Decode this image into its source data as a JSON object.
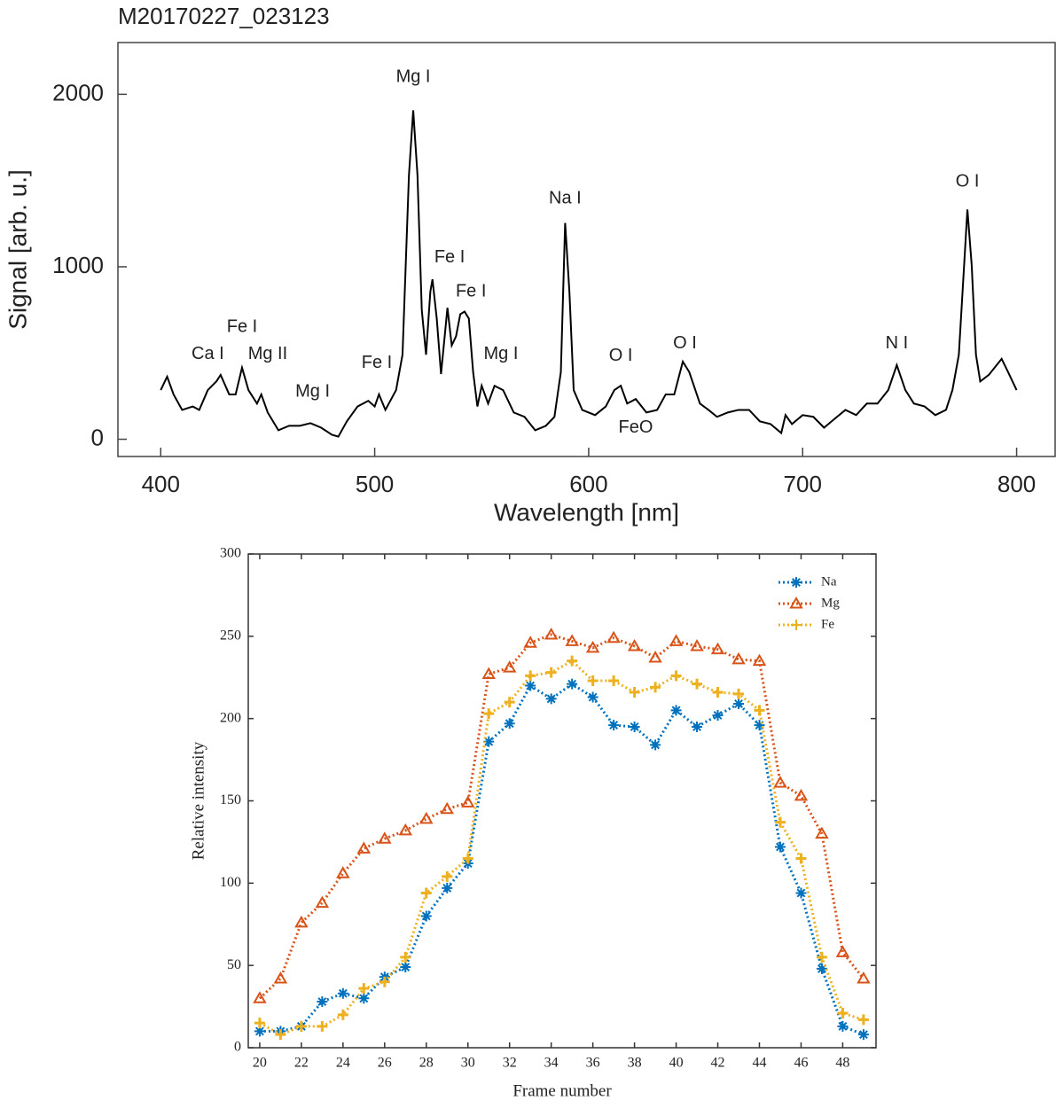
{
  "chart_data": [
    {
      "type": "line",
      "title": "M20170227_023123",
      "xlabel": "Wavelength [nm]",
      "ylabel": "Signal [arb. u.]",
      "color": "#000000",
      "x": [
        400,
        403,
        406,
        410,
        415,
        418,
        422,
        426,
        428,
        432,
        435,
        438,
        441,
        445,
        447,
        450,
        455,
        460,
        465,
        470,
        475,
        480,
        483,
        487,
        492,
        497,
        500,
        502,
        505,
        510,
        513,
        516,
        518,
        520,
        522,
        524,
        526,
        527,
        529,
        531,
        534,
        536,
        538,
        540,
        542,
        544,
        546,
        548,
        550,
        553,
        556,
        560,
        565,
        570,
        575,
        580,
        584,
        587,
        589,
        591,
        593,
        597,
        603,
        608,
        612,
        615,
        618,
        622,
        627,
        632,
        636,
        640,
        644,
        647,
        652,
        656,
        660,
        665,
        670,
        675,
        680,
        685,
        690,
        692,
        695,
        700,
        705,
        710,
        715,
        720,
        725,
        730,
        735,
        740,
        744,
        748,
        752,
        757,
        762,
        767,
        770,
        773,
        777,
        779,
        781,
        783,
        787,
        793,
        796,
        800
      ],
      "values": [
        285,
        363,
        260,
        170,
        190,
        170,
        285,
        335,
        373,
        260,
        260,
        415,
        285,
        207,
        260,
        155,
        52,
        78,
        78,
        93,
        67,
        26,
        15,
        104,
        190,
        223,
        190,
        260,
        170,
        285,
        490,
        1530,
        1907,
        1530,
        750,
        490,
        855,
        927,
        700,
        378,
        762,
        544,
        596,
        725,
        740,
        700,
        390,
        190,
        310,
        207,
        310,
        285,
        155,
        130,
        52,
        78,
        130,
        390,
        1254,
        855,
        285,
        170,
        140,
        190,
        285,
        310,
        207,
        233,
        155,
        170,
        260,
        260,
        450,
        390,
        207,
        170,
        130,
        155,
        170,
        170,
        104,
        88,
        36,
        140,
        88,
        140,
        130,
        67,
        119,
        170,
        140,
        207,
        207,
        285,
        430,
        285,
        207,
        190,
        140,
        170,
        285,
        490,
        1332,
        1010,
        490,
        335,
        373,
        466,
        390,
        285
      ],
      "xlim": [
        380,
        818
      ],
      "ylim": [
        -100,
        2300
      ],
      "xticks": [
        400,
        500,
        600,
        700,
        800
      ],
      "yticks": [
        0,
        1000,
        2000
      ],
      "annotations": [
        {
          "text": "Ca I",
          "x": 422,
          "y": 492
        },
        {
          "text": "Fe I",
          "x": 438,
          "y": 648
        },
        {
          "text": "Mg II",
          "x": 450,
          "y": 492
        },
        {
          "text": "Mg I",
          "x": 471,
          "y": 275
        },
        {
          "text": "Fe I",
          "x": 501,
          "y": 440
        },
        {
          "text": "Mg I",
          "x": 518,
          "y": 2098
        },
        {
          "text": "Fe I",
          "x": 535,
          "y": 1052
        },
        {
          "text": "Fe I",
          "x": 545,
          "y": 855
        },
        {
          "text": "Mg I",
          "x": 559,
          "y": 492
        },
        {
          "text": "Na I",
          "x": 589,
          "y": 1394
        },
        {
          "text": "O I",
          "x": 615,
          "y": 482
        },
        {
          "text": "FeO",
          "x": 622,
          "y": 67
        },
        {
          "text": "O I",
          "x": 645,
          "y": 554
        },
        {
          "text": "N I",
          "x": 744,
          "y": 554
        },
        {
          "text": "O I",
          "x": 777,
          "y": 1492
        }
      ]
    },
    {
      "type": "line",
      "xlabel": "Frame number",
      "ylabel": "Relative intensity",
      "legend": "upper right",
      "x": [
        20,
        21,
        22,
        23,
        24,
        25,
        26,
        27,
        28,
        29,
        30,
        31,
        32,
        33,
        34,
        35,
        36,
        37,
        38,
        39,
        40,
        41,
        42,
        43,
        44,
        45,
        46,
        47,
        48,
        49
      ],
      "series": [
        {
          "name": "Na",
          "color": "#0072bd",
          "marker": "asterisk",
          "values": [
            10,
            10,
            13,
            28,
            33,
            30,
            43,
            49,
            80,
            97,
            112,
            186,
            197,
            220,
            212,
            221,
            213,
            196,
            195,
            184,
            205,
            195,
            202,
            209,
            196,
            122,
            94,
            48,
            13,
            8
          ]
        },
        {
          "name": "Mg",
          "color": "#d95319",
          "marker": "triangle",
          "values": [
            30,
            42,
            76,
            88,
            106,
            121,
            127,
            132,
            139,
            145,
            149,
            227,
            231,
            246,
            251,
            247,
            243,
            249,
            244,
            237,
            247,
            244,
            242,
            236,
            235,
            161,
            153,
            130,
            58,
            42
          ]
        },
        {
          "name": "Fe",
          "color": "#edb120",
          "marker": "plus",
          "values": [
            15,
            8,
            13,
            13,
            20,
            36,
            40,
            55,
            94,
            104,
            115,
            203,
            210,
            226,
            228,
            235,
            223,
            223,
            216,
            219,
            226,
            221,
            216,
            215,
            205,
            137,
            115,
            55,
            21,
            17
          ]
        }
      ],
      "xlim": [
        19.45,
        49.6
      ],
      "ylim": [
        0,
        300
      ],
      "xticks": [
        20,
        22,
        24,
        26,
        28,
        30,
        32,
        34,
        36,
        38,
        40,
        42,
        44,
        46,
        48
      ],
      "yticks": [
        0,
        50,
        100,
        150,
        200,
        250,
        300
      ]
    }
  ]
}
